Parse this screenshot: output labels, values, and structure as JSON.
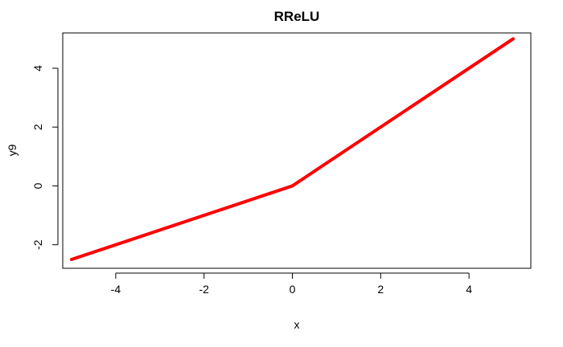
{
  "chart_data": {
    "type": "line",
    "title": "RReLU",
    "xlabel": "x",
    "ylabel": "y9",
    "xlim": [
      -5.2,
      5.4
    ],
    "ylim": [
      -2.8,
      5.2
    ],
    "x_ticks": [
      -4,
      -2,
      0,
      2,
      4
    ],
    "y_ticks": [
      -2,
      0,
      2,
      4
    ],
    "x_tick_labels": [
      "-4",
      "-2",
      "0",
      "2",
      "4"
    ],
    "y_tick_labels": [
      "-2",
      "0",
      "2",
      "4"
    ],
    "series": [
      {
        "color": "#ff0000",
        "x": [
          -5,
          0,
          5
        ],
        "y": [
          -2.5,
          0,
          5
        ]
      }
    ],
    "grid": false,
    "legend": "none"
  }
}
